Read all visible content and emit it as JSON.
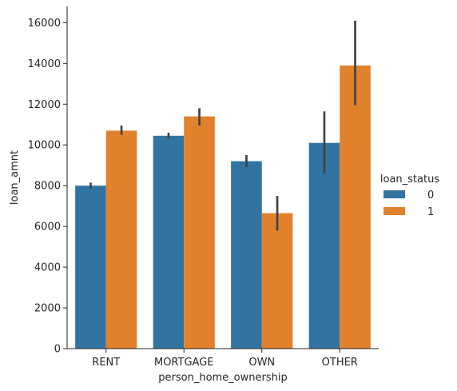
{
  "chart_data": {
    "type": "bar",
    "title": "",
    "xlabel": "person_home_ownership",
    "ylabel": "loan_amnt",
    "categories": [
      "RENT",
      "MORTGAGE",
      "OWN",
      "OTHER"
    ],
    "ylim": [
      0,
      16800
    ],
    "yticks": [
      "0",
      "2000",
      "4000",
      "6000",
      "8000",
      "10000",
      "12000",
      "14000",
      "16000"
    ],
    "grid": false,
    "legend": {
      "title": "loan_status",
      "placement": "right"
    },
    "series": [
      {
        "name": "0",
        "color": "#3274a1",
        "values": [
          8000,
          10450,
          9200,
          10100
        ],
        "ci_low": [
          7850,
          10300,
          8900,
          8600
        ],
        "ci_high": [
          8150,
          10600,
          9500,
          11650
        ]
      },
      {
        "name": "1",
        "color": "#e1812c",
        "values": [
          10700,
          11400,
          6650,
          13900
        ],
        "ci_low": [
          10500,
          10950,
          5800,
          11950
        ],
        "ci_high": [
          10950,
          11800,
          7500,
          16100
        ]
      }
    ]
  }
}
